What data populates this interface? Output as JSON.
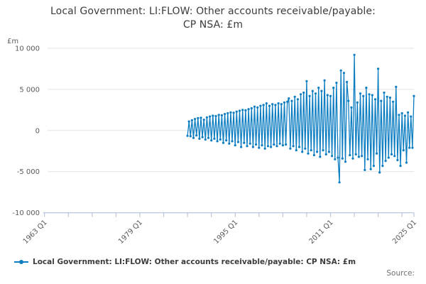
{
  "title": "Local Government: LI:FLOW: Other accounts receivable/payable: CP NSA: £m",
  "legend": {
    "label": "Local Government: LI:FLOW: Other accounts receivable/payable: CP NSA: £m"
  },
  "source_label": "Source:",
  "colors": {
    "line": "#0d7dc2",
    "grid": "#e3e3e3",
    "axis": "#b7c6dd",
    "tick_text": "#5a5a5a",
    "title_text": "#3c3c3d"
  },
  "chart_data": {
    "type": "line",
    "title": "Local Government: LI:FLOW: Other accounts receivable/payable: CP NSA: £m",
    "ylabel": "£m",
    "xlabel": "",
    "grid": "horizontal",
    "legend_position": "bottom-left",
    "xlim": [
      1963,
      2025
    ],
    "ylim": [
      -10000,
      10000
    ],
    "y_ticks": [
      {
        "value": 10000,
        "label": "10 000"
      },
      {
        "value": 5000,
        "label": "5 000"
      },
      {
        "value": 0,
        "label": "0"
      },
      {
        "value": -5000,
        "label": "-5 000"
      },
      {
        "value": -10000,
        "label": "-10 000"
      }
    ],
    "x_minor_tick_years": [
      1963,
      1967,
      1971,
      1975,
      1979,
      1983,
      1987,
      1991,
      1995,
      1999,
      2003,
      2007,
      2011,
      2015,
      2019,
      2023,
      2025
    ],
    "x_major_ticks": [
      {
        "year": 1963,
        "label": "1963 Q1"
      },
      {
        "year": 1979,
        "label": "1979 Q1"
      },
      {
        "year": 1995,
        "label": "1995 Q1"
      },
      {
        "year": 2011,
        "label": "2011 Q1"
      },
      {
        "year": 2025,
        "label": "2025 Q1"
      }
    ],
    "x_start": 1987.0,
    "x_step": 0.25,
    "x_unit": "year (quarterly)",
    "series": [
      {
        "name": "Local Government: LI:FLOW: Other accounts receivable/payable: CP NSA: £m",
        "color": "#0d7dc2",
        "values": [
          -650,
          1100,
          -700,
          1250,
          -900,
          1400,
          -600,
          1500,
          -1000,
          1550,
          -800,
          1300,
          -1100,
          1600,
          -900,
          1700,
          -1200,
          1800,
          -1000,
          1750,
          -1300,
          1900,
          -1100,
          1850,
          -1500,
          2000,
          -1200,
          2100,
          -1600,
          2200,
          -1300,
          2150,
          -1800,
          2300,
          -1400,
          2400,
          -2000,
          2500,
          -1500,
          2450,
          -1900,
          2600,
          -1600,
          2700,
          -2000,
          2900,
          -1700,
          2800,
          -2100,
          3000,
          -1800,
          3100,
          -2200,
          3300,
          -1900,
          3000,
          -2000,
          3200,
          -1700,
          3100,
          -1900,
          3300,
          -1600,
          3200,
          -1800,
          3400,
          -1700,
          3500,
          3900,
          -2200,
          3600,
          -1900,
          4100,
          -2400,
          3800,
          -2000,
          4400,
          -2600,
          4600,
          -2200,
          6000,
          -2800,
          4200,
          -2400,
          4800,
          -3000,
          4500,
          -2600,
          5200,
          -3200,
          4800,
          -2400,
          6100,
          -2900,
          4300,
          -2600,
          4200,
          -3100,
          5200,
          -3500,
          5800,
          -3300,
          -6300,
          7300,
          -3400,
          7000,
          -3800,
          5900,
          3600,
          -3000,
          2800,
          -3400,
          9200,
          -2900,
          3400,
          -3200,
          4500,
          -3100,
          4200,
          -4800,
          5200,
          -3500,
          4400,
          -4700,
          4300,
          -4300,
          3800,
          -2800,
          7500,
          -5100,
          3600,
          -4300,
          4600,
          -3700,
          4100,
          -3300,
          4000,
          -2900,
          3500,
          -3100,
          5300,
          -3600,
          1900,
          -4300,
          2100,
          -2400,
          1800,
          -3900,
          2200,
          -2100,
          1700,
          -2100,
          4200
        ]
      }
    ]
  }
}
